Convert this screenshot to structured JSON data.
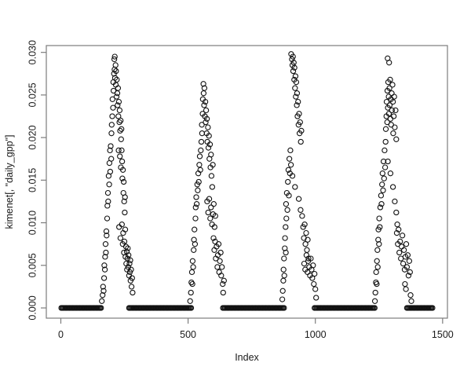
{
  "figure": {
    "background": "#ffffff",
    "frame_color": "#7d7d7d",
    "point_color": "#111111",
    "text_color": "#1a1a1a"
  },
  "chart_data": {
    "type": "scatter",
    "title": "",
    "xlabel": "Index",
    "ylabel": "kimenet[, \"daily_gpp\"]",
    "marker": "open-circle",
    "grid": false,
    "legend": "none",
    "xlim": [
      -57,
      1519
    ],
    "ylim": [
      -0.0012,
      0.0308
    ],
    "x_ticks": [
      0,
      500,
      1000,
      1500
    ],
    "x_tick_labels": [
      "0",
      "500",
      "1000",
      "1500"
    ],
    "y_ticks": [
      0,
      0.005,
      0.01,
      0.015,
      0.02,
      0.025,
      0.03
    ],
    "y_tick_labels": [
      "0.000",
      "0.005",
      "0.010",
      "0.015",
      "0.020",
      "0.025",
      "0.030"
    ],
    "zero_value_runs": [
      {
        "from": 2,
        "to": 160,
        "step": 4,
        "y": 0
      },
      {
        "from": 268,
        "to": 513,
        "step": 4,
        "y": 0
      },
      {
        "from": 637,
        "to": 879,
        "step": 4,
        "y": 0
      },
      {
        "from": 997,
        "to": 1236,
        "step": 4,
        "y": 0
      },
      {
        "from": 1360,
        "to": 1462,
        "step": 4,
        "y": 0
      }
    ],
    "points": [
      [
        161,
        0.0008
      ],
      [
        164,
        0.0015
      ],
      [
        166,
        0.0025
      ],
      [
        168,
        0.002
      ],
      [
        170,
        0.0035
      ],
      [
        171,
        0.005
      ],
      [
        173,
        0.0045
      ],
      [
        174,
        0.006
      ],
      [
        176,
        0.0075
      ],
      [
        177,
        0.0065
      ],
      [
        179,
        0.009
      ],
      [
        180,
        0.0085
      ],
      [
        182,
        0.0105
      ],
      [
        183,
        0.012
      ],
      [
        185,
        0.0135
      ],
      [
        186,
        0.0125
      ],
      [
        188,
        0.0155
      ],
      [
        190,
        0.0145
      ],
      [
        191,
        0.017
      ],
      [
        193,
        0.0185
      ],
      [
        194,
        0.016
      ],
      [
        196,
        0.019
      ],
      [
        198,
        0.0175
      ],
      [
        199,
        0.0205
      ],
      [
        200,
        0.0215
      ],
      [
        202,
        0.0225
      ],
      [
        203,
        0.0245
      ],
      [
        205,
        0.0235
      ],
      [
        206,
        0.0265
      ],
      [
        207,
        0.0255
      ],
      [
        209,
        0.0275
      ],
      [
        210,
        0.0292
      ],
      [
        211,
        0.028
      ],
      [
        212,
        0.0295
      ],
      [
        213,
        0.027
      ],
      [
        215,
        0.0285
      ],
      [
        216,
        0.0262
      ],
      [
        217,
        0.0278
      ],
      [
        219,
        0.0248
      ],
      [
        220,
        0.0268
      ],
      [
        222,
        0.0252
      ],
      [
        223,
        0.0238
      ],
      [
        225,
        0.0258
      ],
      [
        226,
        0.0225
      ],
      [
        228,
        0.0242
      ],
      [
        230,
        0.0218
      ],
      [
        231,
        0.0232
      ],
      [
        233,
        0.0208
      ],
      [
        235,
        0.022
      ],
      [
        237,
        0.0198
      ],
      [
        238,
        0.021
      ],
      [
        227,
        0.0185
      ],
      [
        232,
        0.0178
      ],
      [
        236,
        0.0165
      ],
      [
        239,
        0.0185
      ],
      [
        241,
        0.0172
      ],
      [
        242,
        0.0152
      ],
      [
        244,
        0.0162
      ],
      [
        246,
        0.0135
      ],
      [
        247,
        0.0148
      ],
      [
        249,
        0.0125
      ],
      [
        251,
        0.0112
      ],
      [
        252,
        0.013
      ],
      [
        229,
        0.0095
      ],
      [
        234,
        0.0082
      ],
      [
        240,
        0.0098
      ],
      [
        243,
        0.0075
      ],
      [
        245,
        0.0088
      ],
      [
        248,
        0.0065
      ],
      [
        250,
        0.0078
      ],
      [
        253,
        0.0092
      ],
      [
        254,
        0.006
      ],
      [
        256,
        0.0072
      ],
      [
        257,
        0.0052
      ],
      [
        259,
        0.0066
      ],
      [
        260,
        0.0045
      ],
      [
        262,
        0.0058
      ],
      [
        263,
        0.007
      ],
      [
        265,
        0.0048
      ],
      [
        266,
        0.0062
      ],
      [
        268,
        0.0038
      ],
      [
        270,
        0.0052
      ],
      [
        271,
        0.0042
      ],
      [
        273,
        0.0056
      ],
      [
        274,
        0.0032
      ],
      [
        276,
        0.0045
      ],
      [
        278,
        0.0025
      ],
      [
        280,
        0.0035
      ],
      [
        282,
        0.0018
      ],
      [
        508,
        0.0008
      ],
      [
        511,
        0.0018
      ],
      [
        513,
        0.003
      ],
      [
        515,
        0.0042
      ],
      [
        517,
        0.0028
      ],
      [
        518,
        0.0055
      ],
      [
        520,
        0.0048
      ],
      [
        522,
        0.0068
      ],
      [
        523,
        0.008
      ],
      [
        525,
        0.0092
      ],
      [
        527,
        0.0075
      ],
      [
        529,
        0.0105
      ],
      [
        530,
        0.0118
      ],
      [
        532,
        0.013
      ],
      [
        534,
        0.0122
      ],
      [
        536,
        0.0145
      ],
      [
        538,
        0.0138
      ],
      [
        540,
        0.0158
      ],
      [
        542,
        0.0148
      ],
      [
        544,
        0.0168
      ],
      [
        546,
        0.0178
      ],
      [
        548,
        0.0162
      ],
      [
        550,
        0.0185
      ],
      [
        552,
        0.0195
      ],
      [
        554,
        0.0215
      ],
      [
        555,
        0.0205
      ],
      [
        557,
        0.0228
      ],
      [
        558,
        0.0245
      ],
      [
        560,
        0.0263
      ],
      [
        561,
        0.0252
      ],
      [
        563,
        0.0238
      ],
      [
        564,
        0.0258
      ],
      [
        566,
        0.0225
      ],
      [
        568,
        0.0242
      ],
      [
        569,
        0.0218
      ],
      [
        571,
        0.0232
      ],
      [
        573,
        0.0205
      ],
      [
        574,
        0.0222
      ],
      [
        576,
        0.0195
      ],
      [
        578,
        0.0212
      ],
      [
        580,
        0.0188
      ],
      [
        582,
        0.0202
      ],
      [
        584,
        0.0175
      ],
      [
        586,
        0.0192
      ],
      [
        588,
        0.0165
      ],
      [
        590,
        0.018
      ],
      [
        592,
        0.0155
      ],
      [
        595,
        0.0142
      ],
      [
        597,
        0.0168
      ],
      [
        575,
        0.0125
      ],
      [
        579,
        0.0112
      ],
      [
        583,
        0.0128
      ],
      [
        587,
        0.0105
      ],
      [
        590,
        0.0118
      ],
      [
        594,
        0.0098
      ],
      [
        598,
        0.011
      ],
      [
        601,
        0.0122
      ],
      [
        604,
        0.0095
      ],
      [
        607,
        0.0108
      ],
      [
        600,
        0.0082
      ],
      [
        603,
        0.0068
      ],
      [
        606,
        0.0078
      ],
      [
        609,
        0.0058
      ],
      [
        612,
        0.0072
      ],
      [
        615,
        0.0048
      ],
      [
        617,
        0.0062
      ],
      [
        620,
        0.0075
      ],
      [
        622,
        0.0042
      ],
      [
        625,
        0.0055
      ],
      [
        628,
        0.0065
      ],
      [
        630,
        0.0038
      ],
      [
        633,
        0.0048
      ],
      [
        636,
        0.0028
      ],
      [
        638,
        0.0018
      ],
      [
        641,
        0.0032
      ],
      [
        870,
        0.001
      ],
      [
        872,
        0.002
      ],
      [
        874,
        0.0032
      ],
      [
        875,
        0.0045
      ],
      [
        877,
        0.0058
      ],
      [
        878,
        0.0038
      ],
      [
        880,
        0.007
      ],
      [
        881,
        0.0082
      ],
      [
        883,
        0.0095
      ],
      [
        884,
        0.0065
      ],
      [
        886,
        0.0105
      ],
      [
        885,
        0.0122
      ],
      [
        888,
        0.0135
      ],
      [
        890,
        0.0115
      ],
      [
        892,
        0.0148
      ],
      [
        894,
        0.0162
      ],
      [
        896,
        0.0132
      ],
      [
        898,
        0.0175
      ],
      [
        900,
        0.0158
      ],
      [
        902,
        0.0185
      ],
      [
        904,
        0.0168
      ],
      [
        905,
        0.0298
      ],
      [
        908,
        0.0292
      ],
      [
        910,
        0.0285
      ],
      [
        912,
        0.0295
      ],
      [
        913,
        0.0278
      ],
      [
        915,
        0.0288
      ],
      [
        917,
        0.0268
      ],
      [
        918,
        0.0282
      ],
      [
        920,
        0.0258
      ],
      [
        922,
        0.0272
      ],
      [
        923,
        0.0248
      ],
      [
        925,
        0.0265
      ],
      [
        927,
        0.0238
      ],
      [
        928,
        0.0252
      ],
      [
        930,
        0.0225
      ],
      [
        932,
        0.0242
      ],
      [
        934,
        0.0215
      ],
      [
        936,
        0.0228
      ],
      [
        938,
        0.0205
      ],
      [
        940,
        0.0218
      ],
      [
        943,
        0.0195
      ],
      [
        945,
        0.0208
      ],
      [
        910,
        0.0155
      ],
      [
        920,
        0.0142
      ],
      [
        935,
        0.0128
      ],
      [
        942,
        0.0115
      ],
      [
        948,
        0.0108
      ],
      [
        952,
        0.0095
      ],
      [
        955,
        0.0082
      ],
      [
        958,
        0.0098
      ],
      [
        961,
        0.0075
      ],
      [
        964,
        0.0088
      ],
      [
        967,
        0.0068
      ],
      [
        970,
        0.008
      ],
      [
        973,
        0.0058
      ],
      [
        956,
        0.0052
      ],
      [
        960,
        0.0045
      ],
      [
        965,
        0.0062
      ],
      [
        969,
        0.0042
      ],
      [
        972,
        0.0055
      ],
      [
        976,
        0.0048
      ],
      [
        979,
        0.0038
      ],
      [
        982,
        0.0058
      ],
      [
        985,
        0.0045
      ],
      [
        988,
        0.0035
      ],
      [
        991,
        0.005
      ],
      [
        994,
        0.0028
      ],
      [
        997,
        0.004
      ],
      [
        1000,
        0.0022
      ],
      [
        1003,
        0.0012
      ],
      [
        1234,
        0.0008
      ],
      [
        1236,
        0.0018
      ],
      [
        1238,
        0.003
      ],
      [
        1239,
        0.0042
      ],
      [
        1241,
        0.0028
      ],
      [
        1242,
        0.0055
      ],
      [
        1244,
        0.0068
      ],
      [
        1245,
        0.0048
      ],
      [
        1247,
        0.008
      ],
      [
        1248,
        0.0092
      ],
      [
        1250,
        0.0075
      ],
      [
        1251,
        0.0105
      ],
      [
        1253,
        0.0095
      ],
      [
        1255,
        0.0118
      ],
      [
        1258,
        0.0132
      ],
      [
        1260,
        0.0122
      ],
      [
        1262,
        0.0145
      ],
      [
        1264,
        0.0158
      ],
      [
        1266,
        0.0138
      ],
      [
        1268,
        0.0172
      ],
      [
        1270,
        0.0152
      ],
      [
        1272,
        0.0185
      ],
      [
        1274,
        0.0165
      ],
      [
        1276,
        0.0195
      ],
      [
        1277,
        0.021
      ],
      [
        1279,
        0.0225
      ],
      [
        1280,
        0.0242
      ],
      [
        1282,
        0.0218
      ],
      [
        1283,
        0.0255
      ],
      [
        1284,
        0.0293
      ],
      [
        1285,
        0.0235
      ],
      [
        1286,
        0.0265
      ],
      [
        1288,
        0.0248
      ],
      [
        1289,
        0.0228
      ],
      [
        1290,
        0.0288
      ],
      [
        1291,
        0.0258
      ],
      [
        1292,
        0.0238
      ],
      [
        1294,
        0.0268
      ],
      [
        1295,
        0.0222
      ],
      [
        1297,
        0.0245
      ],
      [
        1298,
        0.0215
      ],
      [
        1300,
        0.0252
      ],
      [
        1301,
        0.0232
      ],
      [
        1303,
        0.0262
      ],
      [
        1305,
        0.0242
      ],
      [
        1306,
        0.0205
      ],
      [
        1308,
        0.0225
      ],
      [
        1310,
        0.0248
      ],
      [
        1312,
        0.0212
      ],
      [
        1315,
        0.0232
      ],
      [
        1318,
        0.0198
      ],
      [
        1285,
        0.0172
      ],
      [
        1295,
        0.0158
      ],
      [
        1305,
        0.0142
      ],
      [
        1312,
        0.0125
      ],
      [
        1318,
        0.0112
      ],
      [
        1322,
        0.0098
      ],
      [
        1320,
        0.0088
      ],
      [
        1324,
        0.0075
      ],
      [
        1327,
        0.0092
      ],
      [
        1330,
        0.0065
      ],
      [
        1333,
        0.0078
      ],
      [
        1336,
        0.0058
      ],
      [
        1339,
        0.0072
      ],
      [
        1342,
        0.0085
      ],
      [
        1345,
        0.0052
      ],
      [
        1348,
        0.0068
      ],
      [
        1351,
        0.0045
      ],
      [
        1354,
        0.006
      ],
      [
        1357,
        0.0075
      ],
      [
        1360,
        0.0048
      ],
      [
        1363,
        0.0062
      ],
      [
        1366,
        0.0038
      ],
      [
        1369,
        0.0055
      ],
      [
        1372,
        0.0042
      ],
      [
        1352,
        0.0028
      ],
      [
        1356,
        0.0022
      ],
      [
        1374,
        0.0015
      ],
      [
        1377,
        0.0008
      ]
    ]
  }
}
